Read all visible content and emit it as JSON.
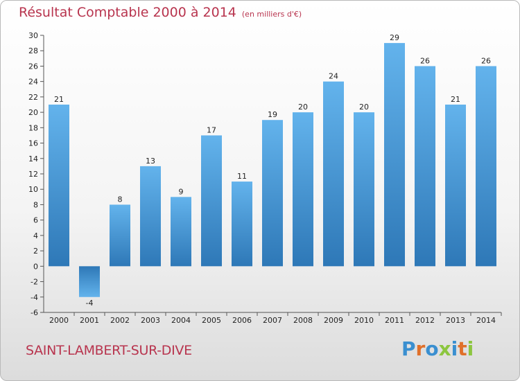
{
  "header": {
    "title": "Résultat Comptable 2000 à 2014",
    "subtitle": "(en milliers d'€)"
  },
  "footer": {
    "commune": "SAINT-LAMBERT-SUR-DIVE",
    "logo_letters": [
      "P",
      "r",
      "o",
      "x",
      "i",
      "t",
      "i"
    ]
  },
  "colors": {
    "accent": "#b8344e",
    "bar_light": "#5fb0ea",
    "bar_dark": "#2f79b8",
    "logo": [
      "#3a8fd0",
      "#e0702a",
      "#3a8fd0",
      "#8cc63f",
      "#3a8fd0",
      "#e0702a",
      "#8cc63f"
    ]
  },
  "chart_data": {
    "type": "bar",
    "title": "Résultat Comptable 2000 à 2014",
    "subtitle": "(en milliers d'€)",
    "categories": [
      "2000",
      "2001",
      "2002",
      "2003",
      "2004",
      "2005",
      "2006",
      "2007",
      "2008",
      "2009",
      "2010",
      "2011",
      "2012",
      "2013",
      "2014"
    ],
    "values": [
      21,
      -4,
      8,
      13,
      9,
      17,
      11,
      19,
      20,
      24,
      20,
      29,
      26,
      21,
      26
    ],
    "xlabel": "",
    "ylabel": "",
    "ylim": [
      -6,
      30
    ],
    "yticks": [
      -6,
      -4,
      -2,
      0,
      2,
      4,
      6,
      8,
      10,
      12,
      14,
      16,
      18,
      20,
      22,
      24,
      26,
      28,
      30
    ],
    "grid": false,
    "legend": "none"
  }
}
